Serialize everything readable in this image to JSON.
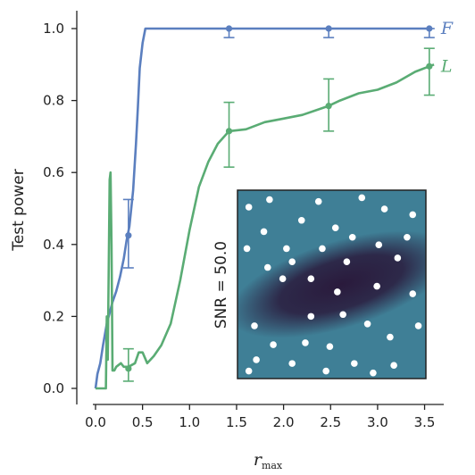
{
  "chart_data": {
    "type": "line",
    "xlabel": "r",
    "xlabel_subscript": "max",
    "ylabel": "Test power",
    "xlim": [
      -0.02,
      3.72
    ],
    "ylim": [
      -0.045,
      1.06
    ],
    "xticks": [
      "0.0",
      "0.5",
      "1.0",
      "1.5",
      "2.0",
      "2.5",
      "3.0",
      "3.5"
    ],
    "yticks": [
      "0.0",
      "0.2",
      "0.4",
      "0.6",
      "0.8",
      "1.0"
    ],
    "grid": false,
    "series": [
      {
        "name": "F",
        "color": "#5b7fbf",
        "curve": [
          [
            0.0,
            0.0
          ],
          [
            0.02,
            0.04
          ],
          [
            0.05,
            0.07
          ],
          [
            0.08,
            0.12
          ],
          [
            0.1,
            0.15
          ],
          [
            0.12,
            0.18
          ],
          [
            0.15,
            0.21
          ],
          [
            0.18,
            0.24
          ],
          [
            0.22,
            0.27
          ],
          [
            0.26,
            0.31
          ],
          [
            0.3,
            0.36
          ],
          [
            0.33,
            0.41
          ],
          [
            0.36,
            0.45
          ],
          [
            0.4,
            0.55
          ],
          [
            0.43,
            0.68
          ],
          [
            0.45,
            0.78
          ],
          [
            0.47,
            0.89
          ],
          [
            0.5,
            0.96
          ],
          [
            0.53,
            1.0
          ],
          [
            3.55,
            1.0
          ]
        ],
        "markers": [
          {
            "x": 0.35,
            "y": 0.425,
            "lo": 0.335,
            "hi": 0.525
          },
          {
            "x": 1.42,
            "y": 1.0,
            "lo": 0.975,
            "hi": 1.0
          },
          {
            "x": 2.48,
            "y": 1.0,
            "lo": 0.975,
            "hi": 1.0
          },
          {
            "x": 3.55,
            "y": 1.0,
            "lo": 0.975,
            "hi": 1.0
          }
        ]
      },
      {
        "name": "L",
        "color": "#5aac74",
        "curve": [
          [
            0.0,
            0.0
          ],
          [
            0.11,
            0.0
          ],
          [
            0.12,
            0.2
          ],
          [
            0.13,
            0.08
          ],
          [
            0.15,
            0.58
          ],
          [
            0.16,
            0.6
          ],
          [
            0.17,
            0.4
          ],
          [
            0.18,
            0.05
          ],
          [
            0.2,
            0.05
          ],
          [
            0.22,
            0.06
          ],
          [
            0.27,
            0.07
          ],
          [
            0.3,
            0.06
          ],
          [
            0.35,
            0.06
          ],
          [
            0.42,
            0.07
          ],
          [
            0.46,
            0.1
          ],
          [
            0.5,
            0.1
          ],
          [
            0.55,
            0.07
          ],
          [
            0.62,
            0.09
          ],
          [
            0.7,
            0.12
          ],
          [
            0.8,
            0.18
          ],
          [
            0.9,
            0.3
          ],
          [
            1.0,
            0.44
          ],
          [
            1.1,
            0.56
          ],
          [
            1.2,
            0.63
          ],
          [
            1.3,
            0.68
          ],
          [
            1.42,
            0.715
          ],
          [
            1.6,
            0.72
          ],
          [
            1.8,
            0.74
          ],
          [
            2.0,
            0.75
          ],
          [
            2.2,
            0.76
          ],
          [
            2.48,
            0.785
          ],
          [
            2.6,
            0.8
          ],
          [
            2.8,
            0.82
          ],
          [
            3.0,
            0.83
          ],
          [
            3.2,
            0.85
          ],
          [
            3.4,
            0.88
          ],
          [
            3.55,
            0.895
          ],
          [
            3.6,
            0.9
          ]
        ],
        "markers": [
          {
            "x": 0.35,
            "y": 0.055,
            "lo": 0.02,
            "hi": 0.11
          },
          {
            "x": 1.42,
            "y": 0.715,
            "lo": 0.615,
            "hi": 0.795
          },
          {
            "x": 2.48,
            "y": 0.785,
            "lo": 0.715,
            "hi": 0.86
          },
          {
            "x": 3.55,
            "y": 0.895,
            "lo": 0.815,
            "hi": 0.945
          }
        ]
      }
    ]
  },
  "inset": {
    "label": "SNR = 50.0",
    "background": "#3f7f96",
    "band_color": "#2a1a3c",
    "dot_color": "#ffffff",
    "dots": [
      [
        0.06,
        0.09
      ],
      [
        0.17,
        0.05
      ],
      [
        0.43,
        0.06
      ],
      [
        0.66,
        0.04
      ],
      [
        0.78,
        0.1
      ],
      [
        0.93,
        0.13
      ],
      [
        0.34,
        0.16
      ],
      [
        0.14,
        0.22
      ],
      [
        0.52,
        0.2
      ],
      [
        0.61,
        0.25
      ],
      [
        0.9,
        0.25
      ],
      [
        0.05,
        0.31
      ],
      [
        0.26,
        0.31
      ],
      [
        0.45,
        0.31
      ],
      [
        0.75,
        0.29
      ],
      [
        0.16,
        0.41
      ],
      [
        0.29,
        0.38
      ],
      [
        0.58,
        0.38
      ],
      [
        0.85,
        0.36
      ],
      [
        0.24,
        0.47
      ],
      [
        0.39,
        0.47
      ],
      [
        0.53,
        0.54
      ],
      [
        0.74,
        0.51
      ],
      [
        0.93,
        0.55
      ],
      [
        0.09,
        0.72
      ],
      [
        0.39,
        0.67
      ],
      [
        0.56,
        0.66
      ],
      [
        0.69,
        0.71
      ],
      [
        0.81,
        0.78
      ],
      [
        0.96,
        0.72
      ],
      [
        0.19,
        0.82
      ],
      [
        0.36,
        0.81
      ],
      [
        0.49,
        0.83
      ],
      [
        0.1,
        0.9
      ],
      [
        0.29,
        0.92
      ],
      [
        0.62,
        0.92
      ],
      [
        0.83,
        0.93
      ],
      [
        0.47,
        0.96
      ],
      [
        0.72,
        0.97
      ],
      [
        0.06,
        0.96
      ]
    ]
  }
}
